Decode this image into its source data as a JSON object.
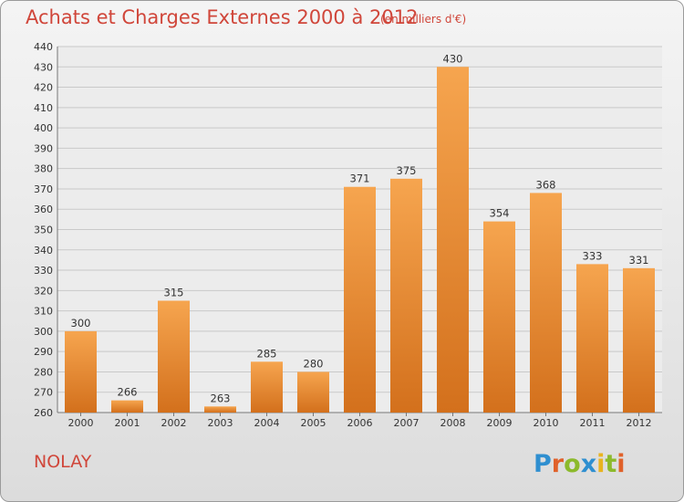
{
  "title": "Achats et Charges Externes 2000 à 2012",
  "subtitle": "(en milliers d'€)",
  "town": "NOLAY",
  "logo_text": "Proxiti",
  "colors": {
    "title": "#d0463a",
    "bar_light": "#f6a54f",
    "bar_dark": "#d3701c",
    "grid": "#c9c9c9"
  },
  "chart_data": {
    "type": "bar",
    "title": "Achats et Charges Externes 2000 à 2012",
    "subtitle": "(en milliers d'€)",
    "xlabel": "",
    "ylabel": "",
    "categories": [
      "2000",
      "2001",
      "2002",
      "2003",
      "2004",
      "2005",
      "2006",
      "2007",
      "2008",
      "2009",
      "2010",
      "2011",
      "2012"
    ],
    "values": [
      300,
      266,
      315,
      263,
      285,
      280,
      371,
      375,
      430,
      354,
      368,
      333,
      331
    ],
    "ylim": [
      260,
      440
    ],
    "ytick_step": 10,
    "grid": true,
    "data_labels": true,
    "legend": "none"
  }
}
